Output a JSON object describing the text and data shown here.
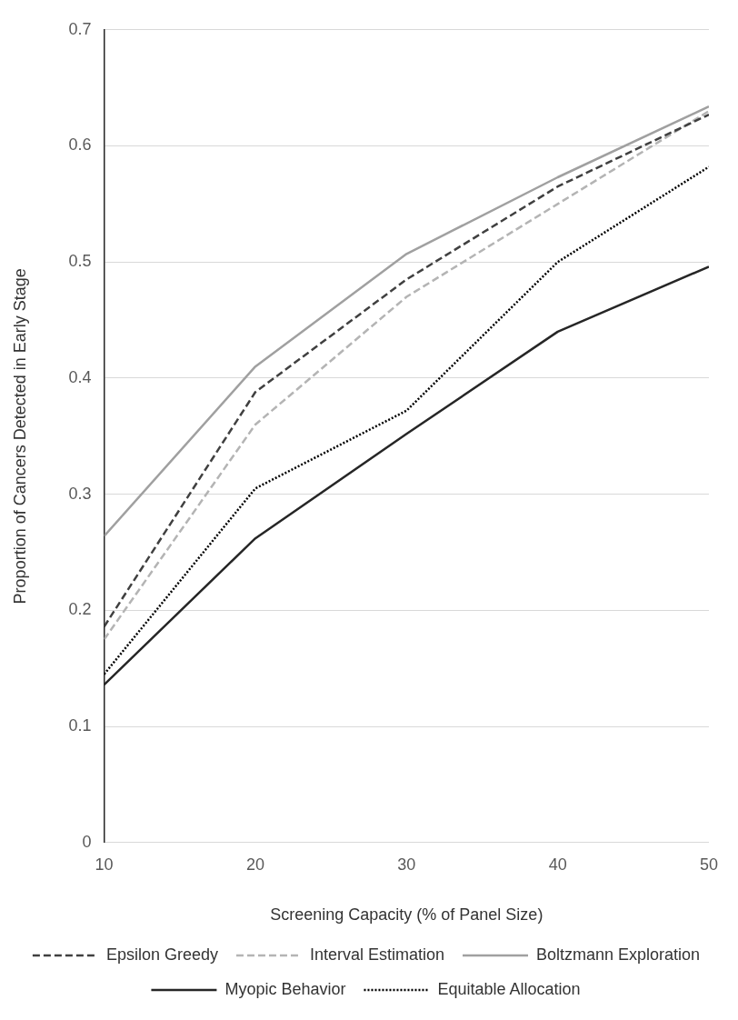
{
  "chart_data": {
    "type": "line",
    "xlabel": "Screening Capacity (% of Panel Size)",
    "ylabel": "Proportion of Cancers Detected in Early Stage",
    "x": [
      10,
      20,
      30,
      40,
      50
    ],
    "xlim": [
      10,
      50
    ],
    "xticks": [
      10,
      20,
      30,
      40,
      50
    ],
    "ylim": [
      0,
      0.7
    ],
    "yticks": [
      0,
      0.1,
      0.2,
      0.3,
      0.4,
      0.5,
      0.6,
      0.7
    ],
    "grid": "y",
    "legend": "bottom",
    "marker": "none",
    "series": [
      {
        "name": "Epsilon Greedy",
        "color": "#404040",
        "line_style": "dashed",
        "values": [
          0.186,
          0.388,
          0.485,
          0.565,
          0.627
        ]
      },
      {
        "name": "Interval Estimation",
        "color": "#b4b4b4",
        "line_style": "dashed",
        "values": [
          0.175,
          0.36,
          0.47,
          0.55,
          0.63
        ]
      },
      {
        "name": "Boltzmann Exploration",
        "color": "#a0a0a0",
        "line_style": "solid",
        "values": [
          0.264,
          0.41,
          0.507,
          0.573,
          0.634
        ]
      },
      {
        "name": "Myopic Behavior",
        "color": "#262626",
        "line_style": "solid",
        "values": [
          0.136,
          0.262,
          0.352,
          0.44,
          0.496
        ]
      },
      {
        "name": "Equitable Allocation",
        "color": "#000000",
        "line_style": "dotted",
        "values": [
          0.145,
          0.305,
          0.372,
          0.5,
          0.582
        ]
      }
    ]
  }
}
